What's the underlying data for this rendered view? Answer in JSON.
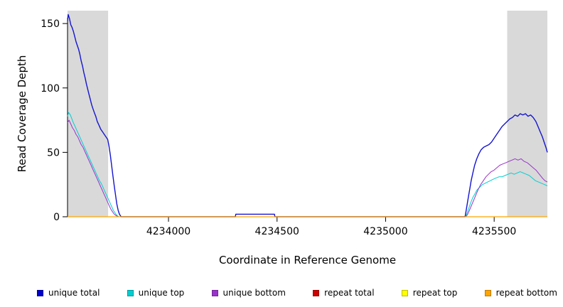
{
  "chart_data": {
    "type": "line",
    "title": "",
    "xlabel": "Coordinate in Reference Genome",
    "ylabel": "Read Coverage Depth",
    "xlim": [
      4233535,
      4235745
    ],
    "ylim": [
      0,
      160
    ],
    "xticks": [
      4234000,
      4234500,
      4235000,
      4235500
    ],
    "yticks": [
      0,
      50,
      100,
      150
    ],
    "grid": false,
    "legend_position": "bottom",
    "background": "#ffffff",
    "shaded_regions": [
      {
        "x0": 4233535,
        "x1": 4233722,
        "color": "#d9d9d9"
      },
      {
        "x0": 4235560,
        "x1": 4235745,
        "color": "#d9d9d9"
      }
    ],
    "series": [
      {
        "name": "unique total",
        "color": "#1515d0",
        "width": 1.4,
        "points": [
          [
            4233535,
            152
          ],
          [
            4233538,
            157
          ],
          [
            4233544,
            154
          ],
          [
            4233550,
            149
          ],
          [
            4233556,
            147
          ],
          [
            4233562,
            144
          ],
          [
            4233568,
            140
          ],
          [
            4233574,
            136
          ],
          [
            4233580,
            133
          ],
          [
            4233586,
            130
          ],
          [
            4233592,
            126
          ],
          [
            4233598,
            121
          ],
          [
            4233604,
            117
          ],
          [
            4233610,
            112
          ],
          [
            4233616,
            108
          ],
          [
            4233622,
            103
          ],
          [
            4233628,
            99
          ],
          [
            4233634,
            95
          ],
          [
            4233640,
            91
          ],
          [
            4233646,
            87
          ],
          [
            4233652,
            84
          ],
          [
            4233658,
            81
          ],
          [
            4233665,
            78
          ],
          [
            4233672,
            74
          ],
          [
            4233680,
            71
          ],
          [
            4233688,
            68
          ],
          [
            4233696,
            66
          ],
          [
            4233704,
            64
          ],
          [
            4233712,
            62
          ],
          [
            4233720,
            60
          ],
          [
            4233726,
            55
          ],
          [
            4233732,
            48
          ],
          [
            4233738,
            40
          ],
          [
            4233744,
            32
          ],
          [
            4233750,
            24
          ],
          [
            4233756,
            17
          ],
          [
            4233762,
            10
          ],
          [
            4233768,
            5
          ],
          [
            4233774,
            2
          ],
          [
            4233782,
            0
          ],
          [
            4234308,
            0
          ],
          [
            4234310,
            2
          ],
          [
            4234488,
            2
          ],
          [
            4234490,
            0
          ],
          [
            4235366,
            0
          ],
          [
            4235370,
            4
          ],
          [
            4235376,
            10
          ],
          [
            4235382,
            16
          ],
          [
            4235388,
            22
          ],
          [
            4235394,
            28
          ],
          [
            4235402,
            34
          ],
          [
            4235410,
            40
          ],
          [
            4235420,
            45
          ],
          [
            4235430,
            49
          ],
          [
            4235440,
            52
          ],
          [
            4235452,
            54
          ],
          [
            4235464,
            55
          ],
          [
            4235476,
            56
          ],
          [
            4235488,
            58
          ],
          [
            4235500,
            61
          ],
          [
            4235512,
            64
          ],
          [
            4235524,
            67
          ],
          [
            4235536,
            70
          ],
          [
            4235548,
            72
          ],
          [
            4235560,
            74
          ],
          [
            4235572,
            76
          ],
          [
            4235584,
            77
          ],
          [
            4235596,
            79
          ],
          [
            4235608,
            78
          ],
          [
            4235620,
            80
          ],
          [
            4235632,
            79
          ],
          [
            4235644,
            80
          ],
          [
            4235656,
            78
          ],
          [
            4235668,
            79
          ],
          [
            4235680,
            77
          ],
          [
            4235692,
            74
          ],
          [
            4235702,
            70
          ],
          [
            4235712,
            66
          ],
          [
            4235722,
            62
          ],
          [
            4235730,
            58
          ],
          [
            4235738,
            54
          ],
          [
            4235745,
            50
          ]
        ]
      },
      {
        "name": "unique top",
        "color": "#00ced1",
        "width": 1,
        "points": [
          [
            4233535,
            78
          ],
          [
            4233540,
            81
          ],
          [
            4233548,
            79
          ],
          [
            4233555,
            76
          ],
          [
            4233562,
            73
          ],
          [
            4233570,
            70
          ],
          [
            4233578,
            67
          ],
          [
            4233586,
            64
          ],
          [
            4233594,
            61
          ],
          [
            4233602,
            58
          ],
          [
            4233610,
            55
          ],
          [
            4233618,
            52
          ],
          [
            4233626,
            49
          ],
          [
            4233634,
            46
          ],
          [
            4233642,
            43
          ],
          [
            4233650,
            40
          ],
          [
            4233658,
            37
          ],
          [
            4233666,
            34
          ],
          [
            4233674,
            31
          ],
          [
            4233682,
            28
          ],
          [
            4233690,
            26
          ],
          [
            4233698,
            23
          ],
          [
            4233706,
            20
          ],
          [
            4233714,
            17
          ],
          [
            4233722,
            14
          ],
          [
            4233730,
            11
          ],
          [
            4233738,
            8
          ],
          [
            4233746,
            5
          ],
          [
            4233754,
            3
          ],
          [
            4233762,
            1
          ],
          [
            4233772,
            0
          ],
          [
            4235368,
            0
          ],
          [
            4235376,
            3
          ],
          [
            4235384,
            7
          ],
          [
            4235392,
            11
          ],
          [
            4235402,
            15
          ],
          [
            4235412,
            18
          ],
          [
            4235422,
            21
          ],
          [
            4235434,
            23
          ],
          [
            4235446,
            25
          ],
          [
            4235458,
            26
          ],
          [
            4235470,
            27
          ],
          [
            4235482,
            28
          ],
          [
            4235494,
            29
          ],
          [
            4235508,
            30
          ],
          [
            4235522,
            31
          ],
          [
            4235536,
            31
          ],
          [
            4235550,
            32
          ],
          [
            4235564,
            33
          ],
          [
            4235578,
            34
          ],
          [
            4235592,
            33
          ],
          [
            4235606,
            34
          ],
          [
            4235620,
            35
          ],
          [
            4235634,
            34
          ],
          [
            4235648,
            33
          ],
          [
            4235662,
            32
          ],
          [
            4235676,
            30
          ],
          [
            4235690,
            28
          ],
          [
            4235704,
            27
          ],
          [
            4235718,
            26
          ],
          [
            4235732,
            25
          ],
          [
            4235745,
            24
          ]
        ]
      },
      {
        "name": "unique bottom",
        "color": "#9932cc",
        "width": 1,
        "points": [
          [
            4233535,
            73
          ],
          [
            4233542,
            75
          ],
          [
            4233550,
            72
          ],
          [
            4233558,
            69
          ],
          [
            4233566,
            67
          ],
          [
            4233574,
            64
          ],
          [
            4233582,
            62
          ],
          [
            4233590,
            59
          ],
          [
            4233598,
            56
          ],
          [
            4233606,
            54
          ],
          [
            4233614,
            51
          ],
          [
            4233622,
            48
          ],
          [
            4233630,
            45
          ],
          [
            4233638,
            42
          ],
          [
            4233646,
            39
          ],
          [
            4233654,
            36
          ],
          [
            4233662,
            33
          ],
          [
            4233670,
            30
          ],
          [
            4233678,
            27
          ],
          [
            4233686,
            24
          ],
          [
            4233694,
            21
          ],
          [
            4233702,
            18
          ],
          [
            4233710,
            15
          ],
          [
            4233718,
            12
          ],
          [
            4233726,
            9
          ],
          [
            4233734,
            6
          ],
          [
            4233742,
            4
          ],
          [
            4233750,
            2
          ],
          [
            4233758,
            1
          ],
          [
            4233768,
            0
          ],
          [
            4235370,
            0
          ],
          [
            4235378,
            2
          ],
          [
            4235386,
            5
          ],
          [
            4235396,
            9
          ],
          [
            4235406,
            13
          ],
          [
            4235416,
            17
          ],
          [
            4235426,
            21
          ],
          [
            4235438,
            25
          ],
          [
            4235450,
            28
          ],
          [
            4235462,
            31
          ],
          [
            4235474,
            33
          ],
          [
            4235486,
            35
          ],
          [
            4235498,
            36
          ],
          [
            4235512,
            38
          ],
          [
            4235526,
            40
          ],
          [
            4235540,
            41
          ],
          [
            4235554,
            42
          ],
          [
            4235568,
            43
          ],
          [
            4235582,
            44
          ],
          [
            4235596,
            45
          ],
          [
            4235610,
            44
          ],
          [
            4235624,
            45
          ],
          [
            4235638,
            43
          ],
          [
            4235652,
            42
          ],
          [
            4235666,
            40
          ],
          [
            4235680,
            38
          ],
          [
            4235694,
            36
          ],
          [
            4235708,
            33
          ],
          [
            4235722,
            30
          ],
          [
            4235734,
            28
          ],
          [
            4235745,
            27
          ]
        ]
      },
      {
        "name": "repeat total",
        "color": "#cd0000",
        "width": 1,
        "points": [
          [
            4233535,
            0
          ],
          [
            4235745,
            0
          ]
        ]
      },
      {
        "name": "repeat top",
        "color": "#ffff00",
        "width": 1,
        "points": [
          [
            4233535,
            0
          ],
          [
            4235745,
            0
          ]
        ]
      },
      {
        "name": "repeat bottom",
        "color": "#ffa500",
        "width": 1.2,
        "points": [
          [
            4233535,
            0
          ],
          [
            4235745,
            0
          ]
        ]
      }
    ],
    "legend": [
      {
        "label": "unique total",
        "color": "#0000cd"
      },
      {
        "label": "unique top",
        "color": "#00ced1"
      },
      {
        "label": "unique bottom",
        "color": "#9932cc"
      },
      {
        "label": "repeat total",
        "color": "#cd0000"
      },
      {
        "label": "repeat top",
        "color": "#ffff00"
      },
      {
        "label": "repeat bottom",
        "color": "#ffa500"
      }
    ]
  }
}
